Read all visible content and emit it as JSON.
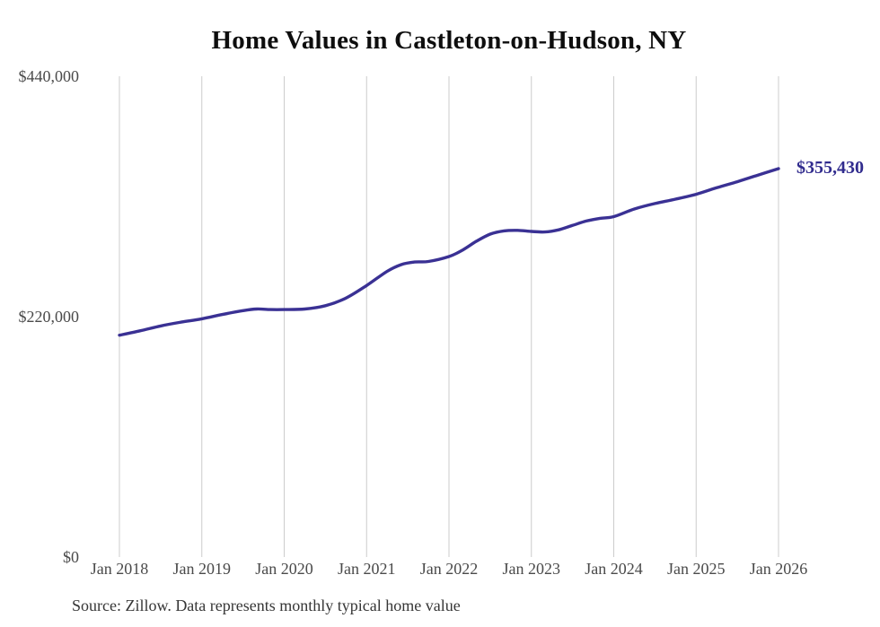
{
  "chart_data": {
    "type": "line",
    "title": "Home Values in Castleton-on-Hudson, NY",
    "xlabel": "",
    "ylabel": "",
    "ylim": [
      0,
      440000
    ],
    "grid": "vertical-year-lines-only",
    "legend_position": "none",
    "line_color": "#3a3194",
    "grid_color": "#cccccc",
    "axis_text_color": "#4a4a4a",
    "end_label": {
      "text": "$355,430",
      "color": "#312c8e"
    },
    "x_ticks": [
      "Jan 2018",
      "Jan 2019",
      "Jan 2020",
      "Jan 2021",
      "Jan 2022",
      "Jan 2023",
      "Jan 2024",
      "Jan 2025",
      "Jan 2026"
    ],
    "y_ticks": [
      {
        "label": "$0",
        "value": 0
      },
      {
        "label": "$220,000",
        "value": 220000
      },
      {
        "label": "$440,000",
        "value": 440000
      }
    ],
    "series": [
      {
        "name": "Monthly typical home value",
        "points": [
          [
            "2018-01",
            203000
          ],
          [
            "2018-04",
            207000
          ],
          [
            "2018-07",
            211500
          ],
          [
            "2018-10",
            215000
          ],
          [
            "2019-01",
            218000
          ],
          [
            "2019-04",
            222000
          ],
          [
            "2019-07",
            225500
          ],
          [
            "2019-09",
            227000
          ],
          [
            "2019-11",
            226500
          ],
          [
            "2020-01",
            226500
          ],
          [
            "2020-04",
            227000
          ],
          [
            "2020-07",
            230000
          ],
          [
            "2020-10",
            237000
          ],
          [
            "2021-01",
            248500
          ],
          [
            "2021-04",
            261500
          ],
          [
            "2021-06",
            267500
          ],
          [
            "2021-08",
            270000
          ],
          [
            "2021-10",
            270500
          ],
          [
            "2022-01",
            275000
          ],
          [
            "2022-03",
            281000
          ],
          [
            "2022-05",
            289000
          ],
          [
            "2022-07",
            295500
          ],
          [
            "2022-09",
            298500
          ],
          [
            "2022-11",
            299000
          ],
          [
            "2023-01",
            298000
          ],
          [
            "2023-03",
            297500
          ],
          [
            "2023-05",
            299500
          ],
          [
            "2023-07",
            303500
          ],
          [
            "2023-09",
            307500
          ],
          [
            "2023-11",
            310000
          ],
          [
            "2024-01",
            311500
          ],
          [
            "2024-04",
            318500
          ],
          [
            "2024-07",
            323500
          ],
          [
            "2024-10",
            327500
          ],
          [
            "2025-01",
            332000
          ],
          [
            "2025-04",
            338000
          ],
          [
            "2025-07",
            343500
          ],
          [
            "2025-10",
            349500
          ],
          [
            "2026-01",
            355430
          ]
        ]
      }
    ]
  },
  "source_note": "Source: Zillow. Data represents monthly typical home value"
}
